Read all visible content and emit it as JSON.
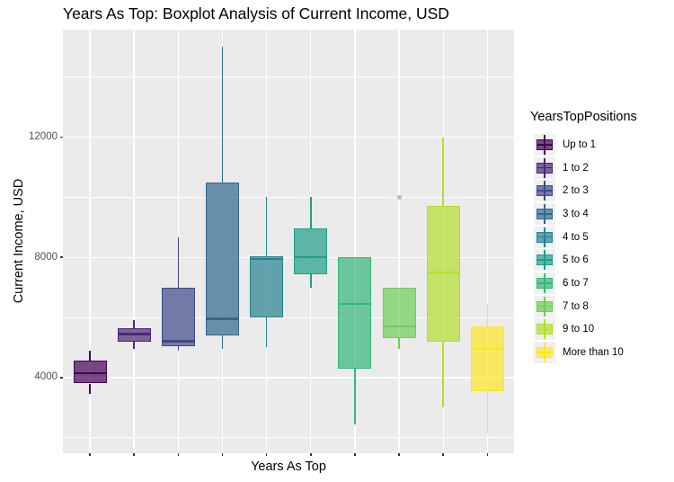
{
  "chart_data": {
    "type": "boxplot",
    "title": "Years As Top: Boxplot Analysis of Current Income, USD",
    "xlabel": "Years As Top",
    "ylabel": "Current Income, USD",
    "legend_title": "YearsTopPositions",
    "legend_position": "right",
    "ylim": [
      1480,
      15580
    ],
    "y_major_ticks": [
      4000,
      8000,
      12000
    ],
    "y_minor_gridlines": [
      2000,
      6000,
      10000,
      14000
    ],
    "x_tick_labels_visible": false,
    "panel_background": "#EBEBEB",
    "gridline_color": "#FFFFFF",
    "legend_key_background": "#F0F0F0",
    "box_fill_alpha": 0.7,
    "groups": [
      {
        "label": "Up to 1",
        "color": "#440154",
        "min": 3450,
        "q1": 3800,
        "median": 4150,
        "q3": 4550,
        "max": 4900,
        "outliers": []
      },
      {
        "label": "1 to 2",
        "color": "#482878",
        "min": 4950,
        "q1": 5200,
        "median": 5450,
        "q3": 5650,
        "max": 5900,
        "outliers": []
      },
      {
        "label": "2 to 3",
        "color": "#3E4A89",
        "min": 4900,
        "q1": 5050,
        "median": 5200,
        "q3": 7000,
        "max": 8650,
        "outliers": []
      },
      {
        "label": "3 to 4",
        "color": "#31688E",
        "min": 4950,
        "q1": 5400,
        "median": 5950,
        "q3": 10500,
        "max": 15000,
        "outliers": []
      },
      {
        "label": "4 to 5",
        "color": "#26828E",
        "min": 5000,
        "q1": 6000,
        "median": 7950,
        "q3": 8050,
        "max": 10000,
        "outliers": []
      },
      {
        "label": "5 to 6",
        "color": "#1F9E89",
        "min": 7000,
        "q1": 7450,
        "median": 8000,
        "q3": 8950,
        "max": 10000,
        "outliers": []
      },
      {
        "label": "6 to 7",
        "color": "#35B779",
        "min": 2450,
        "q1": 4300,
        "median": 6450,
        "q3": 8000,
        "max": 8000,
        "outliers": []
      },
      {
        "label": "7 to 8",
        "color": "#6DCD59",
        "min": 4950,
        "q1": 5300,
        "median": 5700,
        "q3": 7000,
        "max": 7000,
        "outliers": [
          10000
        ]
      },
      {
        "label": "9 to 10",
        "color": "#B4DE2C",
        "min": 3000,
        "q1": 5200,
        "median": 7500,
        "q3": 9700,
        "max": 12000,
        "outliers": []
      },
      {
        "label": "More than 10",
        "color": "#FDE725",
        "min": 2150,
        "q1": 3550,
        "median": 4950,
        "q3": 5700,
        "max": 6450,
        "outliers": []
      }
    ]
  }
}
